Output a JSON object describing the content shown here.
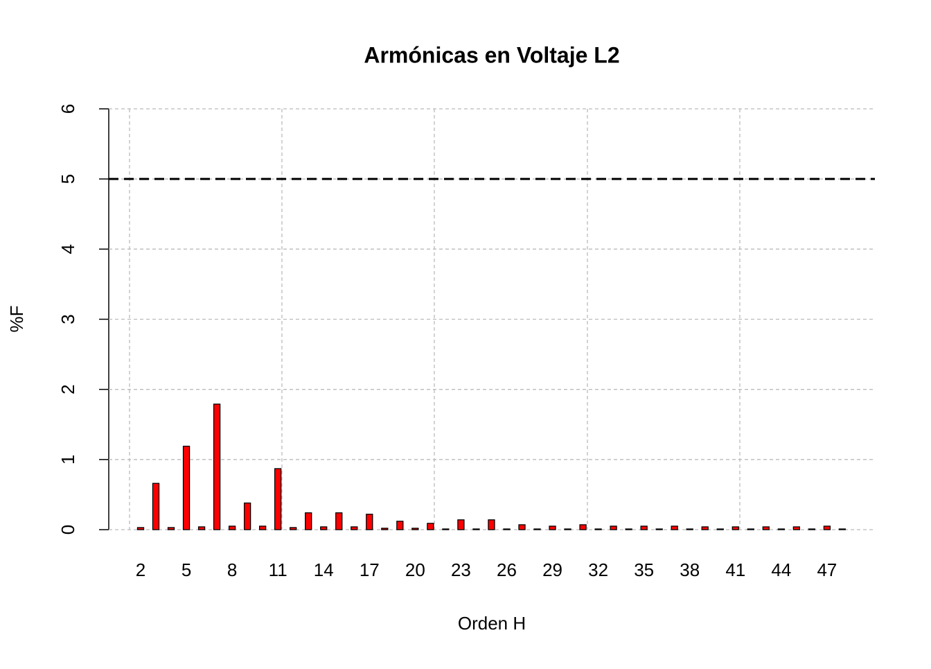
{
  "chart_data": {
    "type": "bar",
    "title": "Armónicas en Voltaje L2",
    "x_label": "Orden H",
    "y_label": "%F",
    "categories": [
      "2",
      null,
      null,
      "5",
      null,
      null,
      "8",
      null,
      null,
      "11",
      null,
      null,
      "14",
      null,
      null,
      "17",
      null,
      null,
      "20",
      null,
      null,
      "23",
      null,
      null,
      "26",
      null,
      null,
      "29",
      null,
      null,
      "32",
      null,
      null,
      "35",
      null,
      null,
      "38",
      null,
      null,
      "41",
      null,
      null,
      "44",
      null,
      null,
      "47",
      null
    ],
    "values": [
      0.03,
      0.66,
      0.03,
      1.19,
      0.04,
      1.79,
      0.05,
      0.38,
      0.05,
      0.87,
      0.03,
      0.24,
      0.04,
      0.24,
      0.04,
      0.22,
      0.02,
      0.12,
      0.02,
      0.09,
      0.01,
      0.14,
      0.01,
      0.14,
      0.01,
      0.07,
      0.01,
      0.05,
      0.01,
      0.07,
      0.01,
      0.05,
      0.01,
      0.05,
      0.01,
      0.05,
      0.01,
      0.04,
      0.01,
      0.04,
      0.01,
      0.04,
      0.01,
      0.04,
      0.01,
      0.05,
      0.01
    ],
    "color": "#ff0000",
    "ylim": [
      0,
      6
    ],
    "yticks": [
      0,
      1,
      2,
      3,
      4,
      5,
      6
    ],
    "grid": true,
    "reference_line": 5
  }
}
